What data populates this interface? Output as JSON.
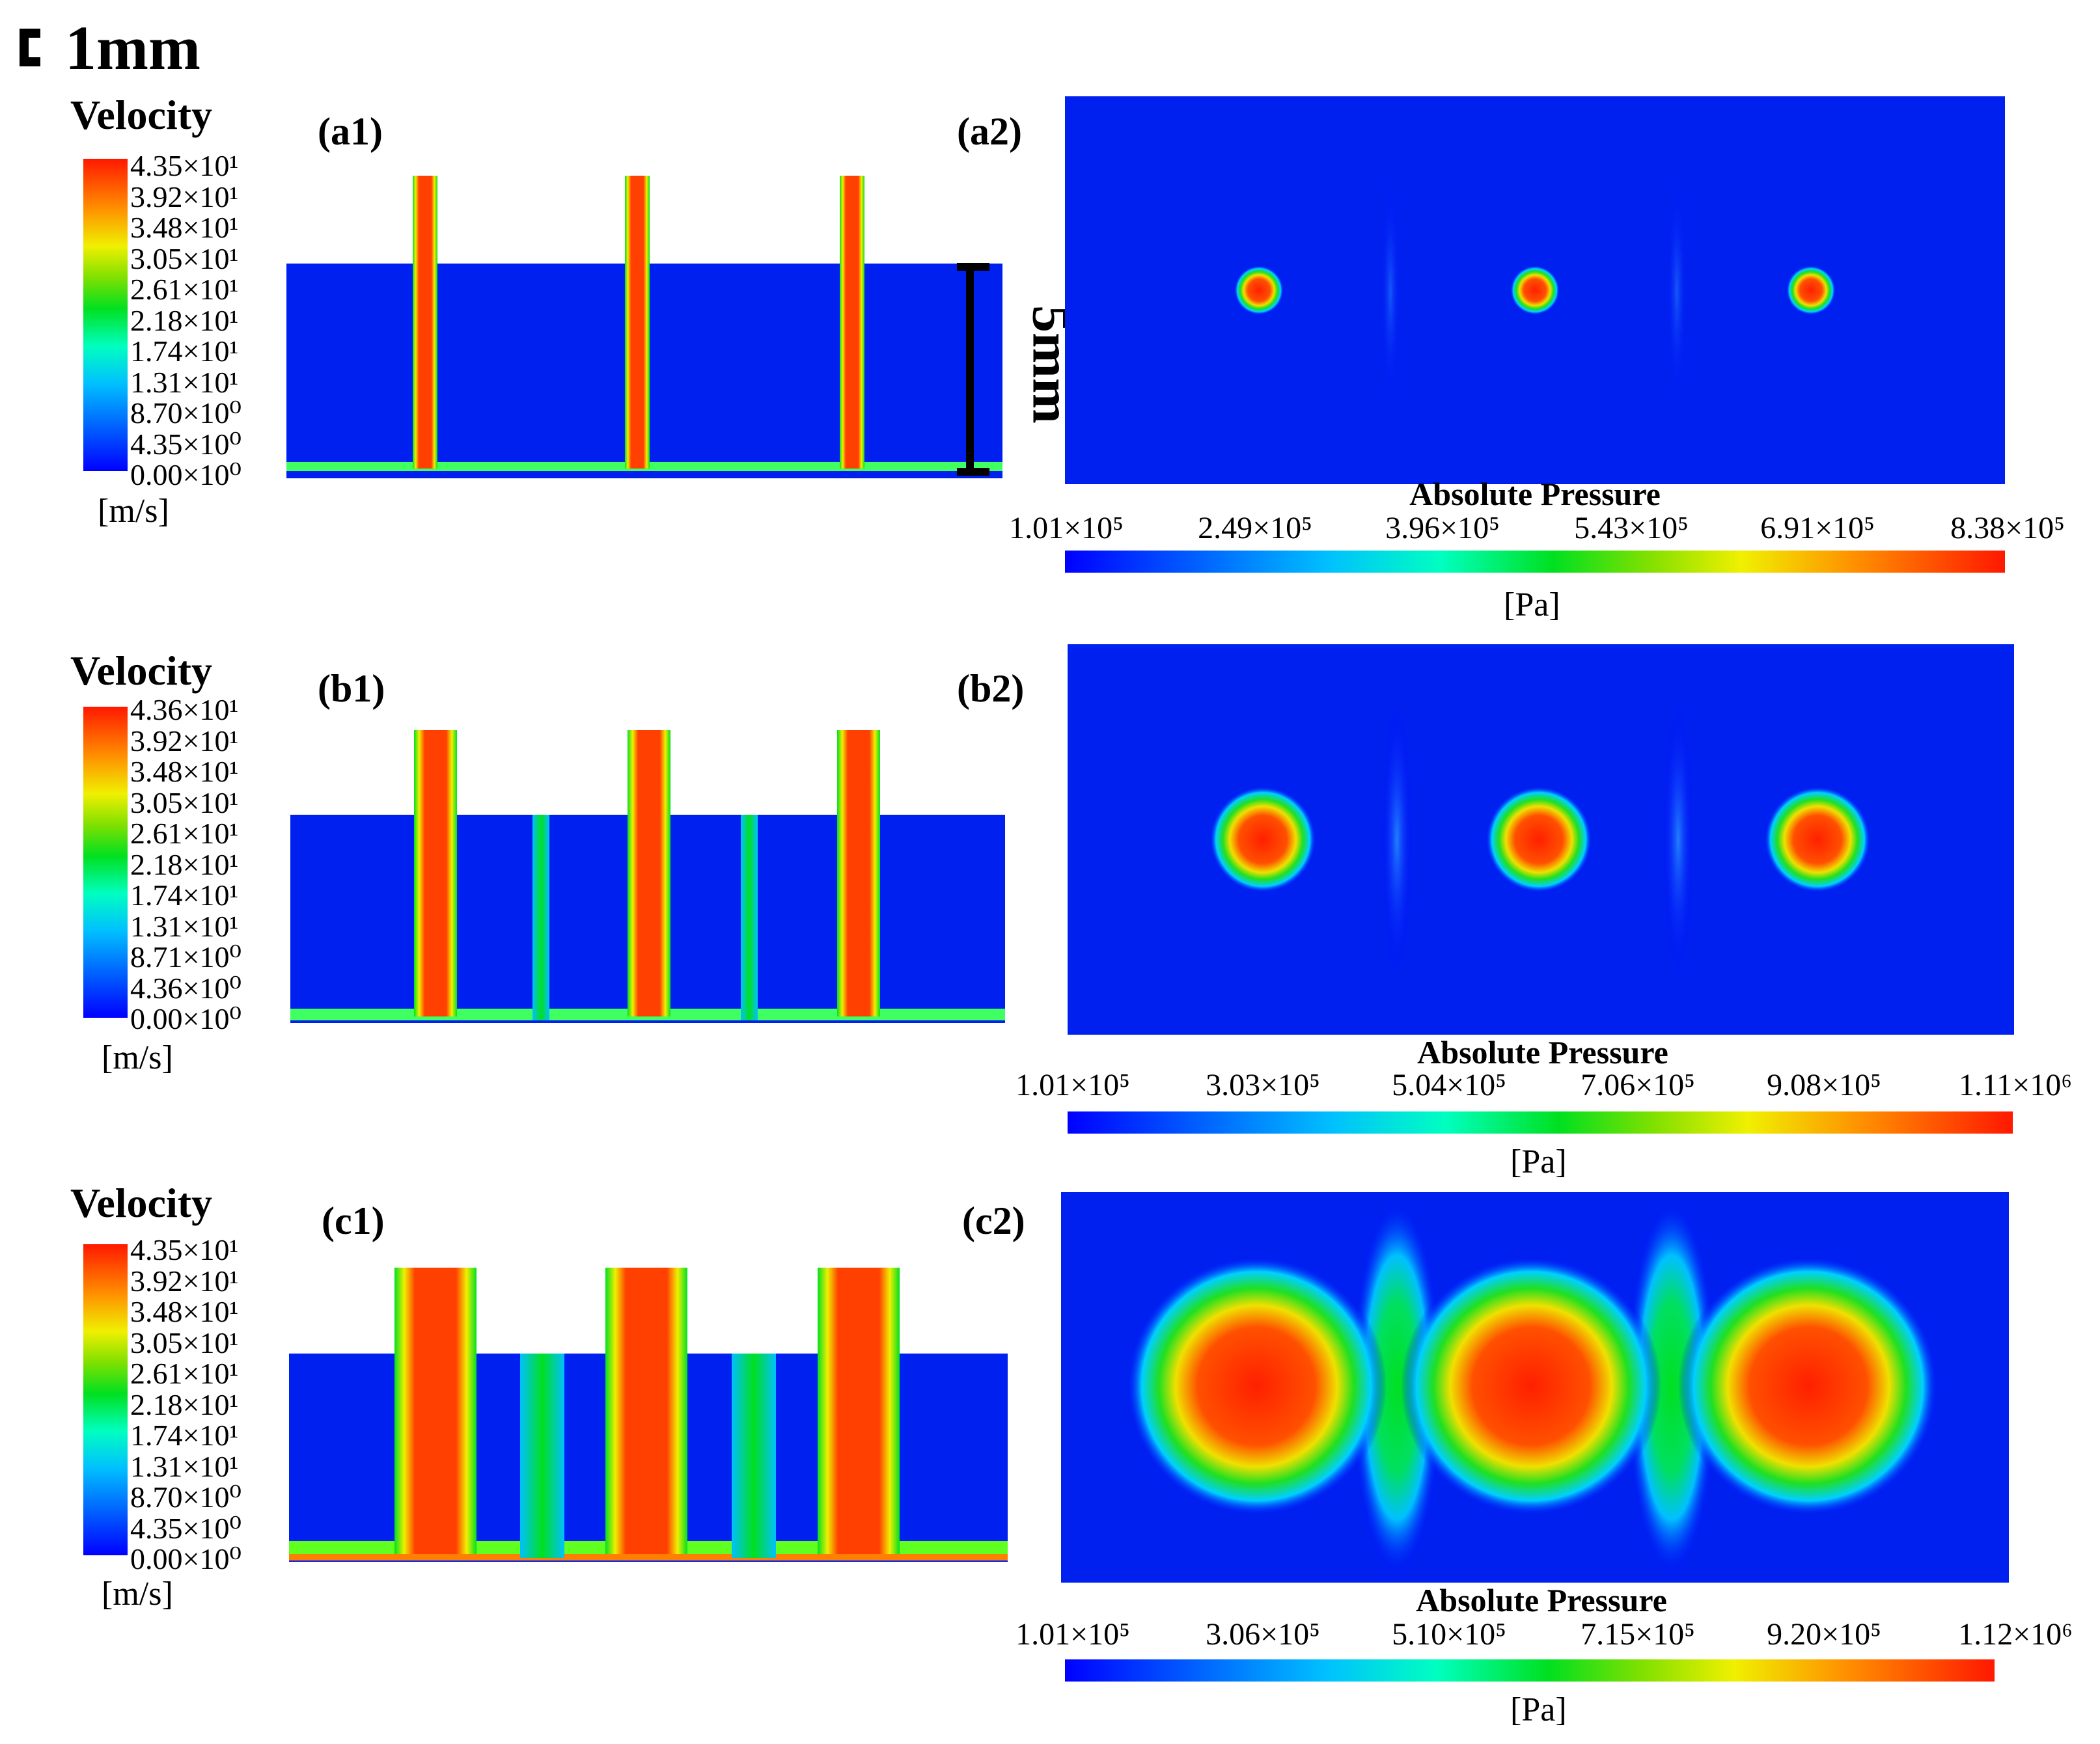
{
  "scale_bar": {
    "label": "1mm"
  },
  "dimension_label": "5mm",
  "rows": [
    {
      "velocity_title": "Velocity",
      "velocity_unit": "[m/s]",
      "velocity_ticks": [
        "4.35×10¹",
        "3.92×10¹",
        "3.48×10¹",
        "3.05×10¹",
        "2.61×10¹",
        "2.18×10¹",
        "1.74×10¹",
        "1.31×10¹",
        "8.70×10⁰",
        "4.35×10⁰",
        "0.00×10⁰"
      ],
      "left_label": "(a1)",
      "right_label": "(a2)",
      "pressure_title": "Absolute Pressure",
      "pressure_ticks": [
        "1.01×10⁵",
        "2.49×10⁵",
        "3.96×10⁵",
        "5.43×10⁵",
        "6.91×10⁵",
        "8.38×10⁵"
      ],
      "pressure_unit": "[Pa]"
    },
    {
      "velocity_title": "Velocity",
      "velocity_unit": "[m/s]",
      "velocity_ticks": [
        "4.36×10¹",
        "3.92×10¹",
        "3.48×10¹",
        "3.05×10¹",
        "2.61×10¹",
        "2.18×10¹",
        "1.74×10¹",
        "1.31×10¹",
        "8.71×10⁰",
        "4.36×10⁰",
        "0.00×10⁰"
      ],
      "left_label": "(b1)",
      "right_label": "(b2)",
      "pressure_title": "Absolute Pressure",
      "pressure_ticks": [
        "1.01×10⁵",
        "3.03×10⁵",
        "5.04×10⁵",
        "7.06×10⁵",
        "9.08×10⁵",
        "1.11×10⁶"
      ],
      "pressure_unit": "[Pa]"
    },
    {
      "velocity_title": "Velocity",
      "velocity_unit": "[m/s]",
      "velocity_ticks": [
        "4.35×10¹",
        "3.92×10¹",
        "3.48×10¹",
        "3.05×10¹",
        "2.61×10¹",
        "2.18×10¹",
        "1.74×10¹",
        "1.31×10¹",
        "8.70×10⁰",
        "4.35×10⁰",
        "0.00×10⁰"
      ],
      "left_label": "(c1)",
      "right_label": "(c2)",
      "pressure_title": "Absolute Pressure",
      "pressure_ticks": [
        "1.01×10⁵",
        "3.06×10⁵",
        "5.10×10⁵",
        "7.15×10⁵",
        "9.20×10⁵",
        "1.12×10⁶"
      ],
      "pressure_unit": "[Pa]"
    }
  ]
}
